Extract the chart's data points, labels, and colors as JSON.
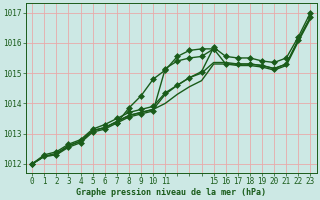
{
  "title": "",
  "xlabel": "Graphe pression niveau de la mer (hPa)",
  "ylabel": "",
  "bg_color": "#cce8e4",
  "grid_color": "#e8aaaa",
  "line_color": "#1a5c1a",
  "marker_color": "#1a5c1a",
  "axis_label_color": "#1a5c1a",
  "tick_label_color": "#1a5c1a",
  "ylim": [
    1011.7,
    1017.3
  ],
  "xlim": [
    -0.5,
    23.5
  ],
  "yticks": [
    1012,
    1013,
    1014,
    1015,
    1016,
    1017
  ],
  "xtick_labels": [
    "0",
    "1",
    "2",
    "3",
    "4",
    "5",
    "6",
    "7",
    "8",
    "9",
    "10",
    "11",
    "",
    "",
    "",
    "15",
    "16",
    "17",
    "18",
    "19",
    "20",
    "21",
    "22",
    "23"
  ],
  "series": [
    {
      "x": [
        0,
        1,
        2,
        3,
        4,
        5,
        6,
        7,
        8,
        9,
        10,
        11,
        12,
        13,
        14,
        15,
        16,
        17,
        18,
        19,
        20,
        21,
        22,
        23
      ],
      "y": [
        1012.0,
        1012.25,
        1012.3,
        1012.55,
        1012.7,
        1013.05,
        1013.15,
        1013.35,
        1013.55,
        1013.65,
        1013.75,
        1015.15,
        1015.4,
        1015.5,
        1015.55,
        1015.8,
        1015.3,
        1015.3,
        1015.3,
        1015.25,
        1015.15,
        1015.3,
        1016.1,
        1016.85
      ],
      "marker": true
    },
    {
      "x": [
        0,
        1,
        2,
        3,
        4,
        5,
        6,
        7,
        8,
        9,
        10,
        11,
        12,
        13,
        14,
        15,
        16,
        17,
        18,
        19,
        20,
        21,
        22,
        23
      ],
      "y": [
        1012.0,
        1012.25,
        1012.3,
        1012.6,
        1012.75,
        1013.1,
        1013.2,
        1013.4,
        1013.6,
        1013.7,
        1013.8,
        1014.3,
        1014.6,
        1014.85,
        1015.0,
        1015.35,
        1015.35,
        1015.3,
        1015.3,
        1015.25,
        1015.15,
        1015.3,
        1016.1,
        1016.85
      ],
      "marker": false
    },
    {
      "x": [
        0,
        1,
        2,
        3,
        4,
        5,
        6,
        7,
        8,
        9,
        10,
        11,
        12,
        13,
        14,
        15,
        16,
        17,
        18,
        19,
        20,
        21,
        22,
        23
      ],
      "y": [
        1012.0,
        1012.25,
        1012.35,
        1012.6,
        1012.75,
        1013.1,
        1013.2,
        1013.4,
        1013.6,
        1013.7,
        1013.8,
        1014.0,
        1014.3,
        1014.55,
        1014.75,
        1015.3,
        1015.3,
        1015.25,
        1015.25,
        1015.2,
        1015.1,
        1015.25,
        1016.05,
        1016.8
      ],
      "marker": false
    },
    {
      "x": [
        0,
        1,
        2,
        3,
        4,
        5,
        6,
        7,
        8,
        9,
        10,
        11,
        12,
        13,
        14,
        15,
        16,
        17,
        18,
        19,
        20,
        21,
        22,
        23
      ],
      "y": [
        1012.0,
        1012.3,
        1012.4,
        1012.65,
        1012.8,
        1013.15,
        1013.3,
        1013.5,
        1013.7,
        1013.8,
        1013.9,
        1014.35,
        1014.6,
        1014.85,
        1015.05,
        1015.85,
        1015.55,
        1015.5,
        1015.5,
        1015.4,
        1015.35,
        1015.5,
        1016.2,
        1017.0
      ],
      "marker": true
    },
    {
      "x": [
        7,
        8,
        9,
        10,
        11,
        12,
        13,
        14,
        15
      ],
      "y": [
        1013.35,
        1013.85,
        1014.25,
        1014.8,
        1015.1,
        1015.55,
        1015.75,
        1015.8,
        1015.8
      ],
      "marker": true
    }
  ],
  "marker": "D",
  "markersize": 3,
  "linewidth": 1.0
}
